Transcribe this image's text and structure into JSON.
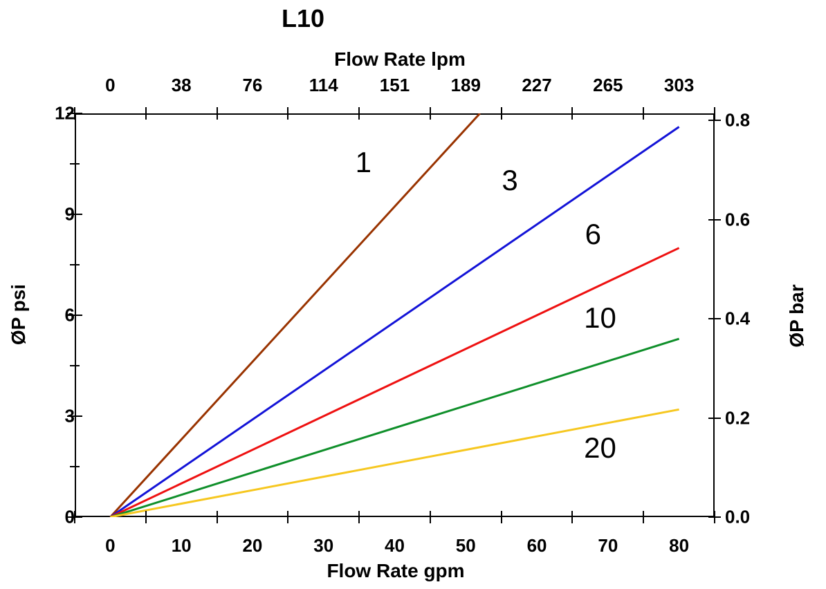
{
  "title": "L10",
  "axes": {
    "top": {
      "label": "Flow Rate lpm",
      "tick_labels": [
        "0",
        "38",
        "76",
        "114",
        "151",
        "189",
        "227",
        "265",
        "303"
      ]
    },
    "bottom": {
      "label": "Flow Rate gpm",
      "tick_labels": [
        "0",
        "10",
        "20",
        "30",
        "40",
        "50",
        "60",
        "70",
        "80"
      ],
      "tick_values": [
        0,
        10,
        20,
        30,
        40,
        50,
        60,
        70,
        80
      ]
    },
    "left": {
      "label": "ØP psi",
      "tick_labels": [
        "0",
        "3",
        "6",
        "9",
        "12"
      ],
      "tick_values": [
        0,
        3,
        6,
        9,
        12
      ],
      "minor_values": [
        1.5,
        4.5,
        7.5,
        10.5
      ]
    },
    "right": {
      "label": "ØP bar",
      "tick_labels": [
        "0.0",
        "0.2",
        "0.4",
        "0.6",
        "0.8"
      ],
      "tick_values": [
        0,
        0.2,
        0.4,
        0.6,
        0.8
      ]
    }
  },
  "chart_data": {
    "type": "line",
    "title": "L10",
    "xlabel_bottom": "Flow Rate gpm",
    "xlabel_top": "Flow Rate lpm",
    "ylabel_left": "ØP psi",
    "ylabel_right": "ØP bar",
    "x_range_gpm": [
      0,
      80
    ],
    "x_range_lpm": [
      0,
      303
    ],
    "y_range_psi": [
      0,
      12
    ],
    "y_range_bar": [
      0.0,
      0.8
    ],
    "grid": false,
    "legend": "inline-labels",
    "series": [
      {
        "name": "1",
        "color": "#993300",
        "points_gpm_psi": [
          [
            0,
            0
          ],
          [
            52,
            12
          ]
        ],
        "label_at": [
          35.6,
          10.55
        ]
      },
      {
        "name": "3",
        "color": "#1313d7",
        "points_gpm_psi": [
          [
            0,
            0
          ],
          [
            80,
            11.6
          ]
        ],
        "label_at": [
          56.2,
          10.0
        ]
      },
      {
        "name": "6",
        "color": "#ee1111",
        "points_gpm_psi": [
          [
            0,
            0
          ],
          [
            80,
            8.0
          ]
        ],
        "label_at": [
          67.9,
          8.4
        ]
      },
      {
        "name": "10",
        "color": "#0f8f2a",
        "points_gpm_psi": [
          [
            0,
            0
          ],
          [
            80,
            5.3
          ]
        ],
        "label_at": [
          68.9,
          5.92
        ]
      },
      {
        "name": "20",
        "color": "#f6c71f",
        "points_gpm_psi": [
          [
            0,
            0
          ],
          [
            80,
            3.2
          ]
        ],
        "label_at": [
          68.9,
          2.06
        ]
      }
    ]
  }
}
